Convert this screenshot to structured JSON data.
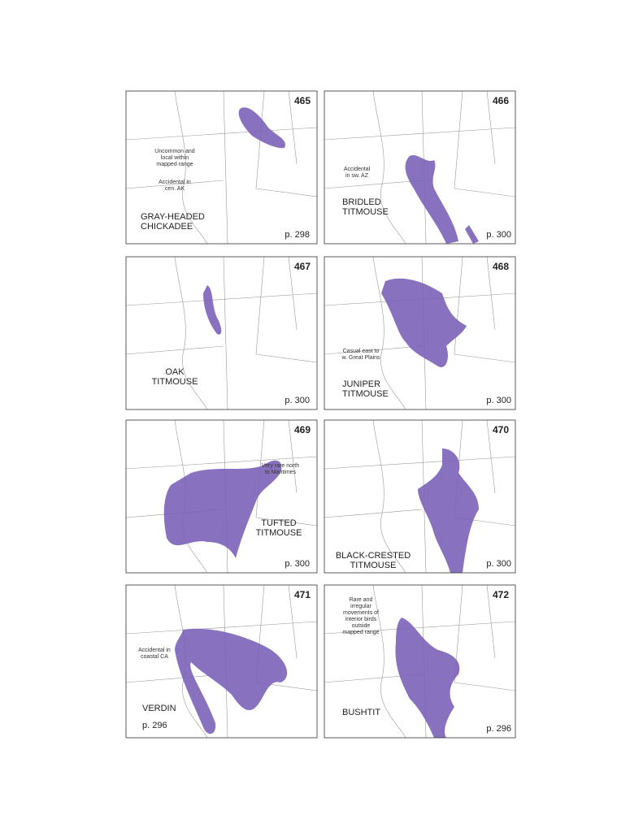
{
  "maps": [
    {
      "number": 465,
      "name": [
        "GRAY-HEADED",
        "CHICKADEE"
      ],
      "page": "p. 298",
      "notes": [
        [
          "Uncommon and",
          "local within",
          "mapped range"
        ],
        [
          "Accidental in",
          "cen. AK"
        ]
      ]
    },
    {
      "number": 466,
      "name": [
        "BRIDLED",
        "TITMOUSE"
      ],
      "page": "p. 300",
      "notes": [
        [
          "Accidental",
          "in sw. AZ"
        ]
      ]
    },
    {
      "number": 467,
      "name": [
        "OAK",
        "TITMOUSE"
      ],
      "page": "p. 300",
      "notes": []
    },
    {
      "number": 468,
      "name": [
        "JUNIPER",
        "TITMOUSE"
      ],
      "page": "p. 300",
      "notes": [
        [
          "Casual east to",
          "w. Great Plains"
        ]
      ]
    },
    {
      "number": 469,
      "name": [
        "TUFTED",
        "TITMOUSE"
      ],
      "page": "p. 300",
      "notes": [
        [
          "Very rare north",
          "to Maritimes"
        ]
      ]
    },
    {
      "number": 470,
      "name": [
        "BLACK-CRESTED",
        "TITMOUSE"
      ],
      "page": "p. 300",
      "notes": []
    },
    {
      "number": 471,
      "name": [
        "VERDIN"
      ],
      "page": "p. 296",
      "notes": [
        [
          "Accidental in",
          "coastal CA"
        ]
      ]
    },
    {
      "number": 472,
      "name": [
        "BUSHTIT"
      ],
      "page": "p. 296",
      "notes": [
        [
          "Rare and",
          "irregular",
          "movements of",
          "interior birds",
          "outside",
          "mapped range"
        ]
      ]
    }
  ]
}
